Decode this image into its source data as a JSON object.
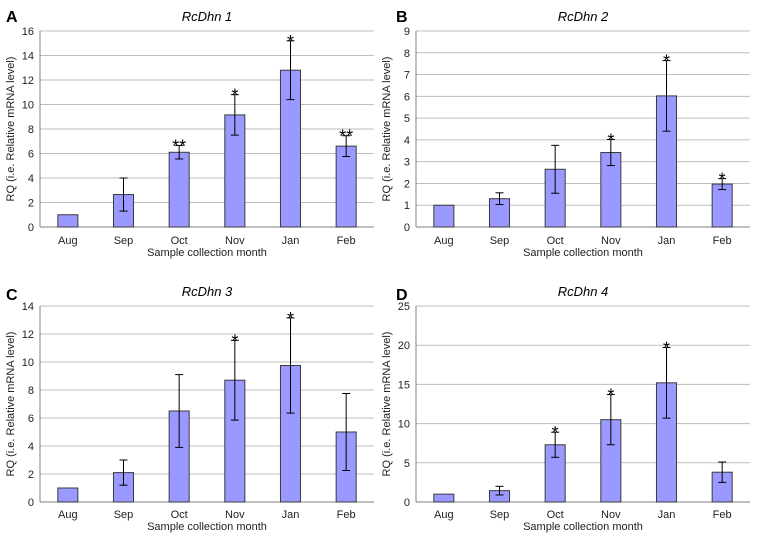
{
  "chart_data": [
    {
      "type": "bar",
      "panel_label": "A",
      "title": "RcDhn 1",
      "xlabel": "Sample collection month",
      "ylabel": "RQ (i.e. Relative mRNA level)",
      "categories": [
        "Aug",
        "Sep",
        "Oct",
        "Nov",
        "Jan",
        "Feb"
      ],
      "values": [
        1,
        2.65,
        6.1,
        9.15,
        12.8,
        6.6
      ],
      "errors": [
        0,
        1.35,
        0.55,
        1.65,
        2.4,
        0.85
      ],
      "significance": [
        "",
        "",
        "**",
        "*",
        "*",
        "**"
      ],
      "ylim": [
        0,
        16
      ],
      "yticks": [
        0,
        2,
        4,
        6,
        8,
        10,
        12,
        14,
        16
      ],
      "grid": true
    },
    {
      "type": "bar",
      "panel_label": "B",
      "title": "RcDhn 2",
      "xlabel": "Sample collection month",
      "ylabel": "RQ (i.e. Relative mRNA level)",
      "categories": [
        "Aug",
        "Sep",
        "Oct",
        "Nov",
        "Jan",
        "Feb"
      ],
      "values": [
        1,
        1.3,
        2.65,
        3.42,
        6.02,
        1.97
      ],
      "errors": [
        0,
        0.27,
        1.1,
        0.6,
        1.62,
        0.25
      ],
      "significance": [
        "",
        "",
        "",
        "*",
        "*",
        "*"
      ],
      "ylim": [
        0,
        9
      ],
      "yticks": [
        0,
        1,
        2,
        3,
        4,
        5,
        6,
        7,
        8,
        9
      ],
      "grid": true
    },
    {
      "type": "bar",
      "panel_label": "C",
      "title": "RcDhn 3",
      "xlabel": "Sample collection month",
      "ylabel": "RQ (i.e. Relative mRNA level)",
      "categories": [
        "Aug",
        "Sep",
        "Oct",
        "Nov",
        "Jan",
        "Feb"
      ],
      "values": [
        1,
        2.1,
        6.5,
        8.7,
        9.75,
        5.0
      ],
      "errors": [
        0,
        0.9,
        2.6,
        2.85,
        3.4,
        2.75
      ],
      "significance": [
        "",
        "",
        "",
        "*",
        "*",
        ""
      ],
      "ylim": [
        0,
        14
      ],
      "yticks": [
        0,
        2,
        4,
        6,
        8,
        10,
        12,
        14
      ],
      "grid": true
    },
    {
      "type": "bar",
      "panel_label": "D",
      "title": "RcDhn 4",
      "xlabel": "Sample collection month",
      "ylabel": "RQ (i.e. Relative mRNA level)",
      "categories": [
        "Aug",
        "Sep",
        "Oct",
        "Nov",
        "Jan",
        "Feb"
      ],
      "values": [
        1,
        1.45,
        7.3,
        10.5,
        15.2,
        3.8
      ],
      "errors": [
        0,
        0.55,
        1.6,
        3.2,
        4.5,
        1.3
      ],
      "significance": [
        "",
        "",
        "*",
        "*",
        "*",
        ""
      ],
      "ylim": [
        0,
        25
      ],
      "yticks": [
        0,
        5,
        10,
        15,
        20,
        25
      ],
      "grid": true
    }
  ]
}
